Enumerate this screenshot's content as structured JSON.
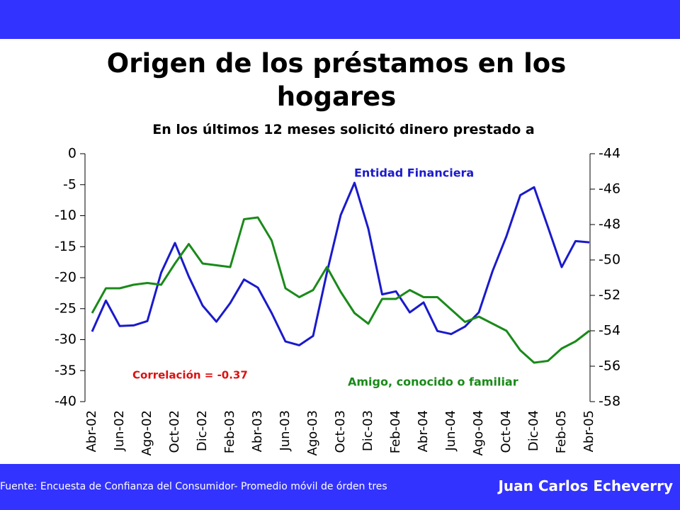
{
  "chart_data": {
    "type": "line",
    "title": "Origen de los préstamos en los hogares",
    "subtitle": "En los últimos 12 meses solicitó dinero prestado a",
    "categories": [
      "Abr-02",
      null,
      "Jun-02",
      null,
      "Ago-02",
      null,
      "Oct-02",
      null,
      "Dic-02",
      null,
      "Feb-03",
      null,
      "Abr-03",
      null,
      "Jun-03",
      null,
      "Ago-03",
      null,
      "Oct-03",
      null,
      "Dic-03",
      null,
      "Feb-04",
      null,
      "Abr-04",
      null,
      "Jun-04",
      null,
      "Ago-04",
      null,
      "Oct-04",
      null,
      "Dic-04",
      null,
      "Feb-05",
      null,
      "Abr-05"
    ],
    "series": [
      {
        "name": "Entidad Financiera",
        "color": "#1a1acc",
        "values": [
          -28.7,
          -23.7,
          -27.8,
          -27.7,
          -27.0,
          -19.2,
          -14.4,
          -19.8,
          -24.5,
          -27.1,
          -24.1,
          -20.3,
          -21.6,
          -25.7,
          -30.3,
          -30.9,
          -29.4,
          -19.2,
          -9.9,
          -4.7,
          -12.1,
          -22.7,
          -22.2,
          -25.6,
          -24.0,
          -28.6,
          -29.1,
          -27.9,
          -25.6,
          -18.9,
          -13.3,
          -6.7,
          -5.4,
          -11.8,
          -18.3,
          -14.1,
          -14.3
        ]
      },
      {
        "name": "Amigo, conocido o familiar",
        "color": "#1a8a1a",
        "axis": "y2",
        "values": [
          -53.0,
          -51.6,
          -51.6,
          -51.4,
          -51.3,
          -51.4,
          -50.2,
          -49.1,
          -50.2,
          -50.3,
          -50.4,
          -47.7,
          -47.6,
          -48.9,
          -51.6,
          -52.1,
          -51.7,
          -50.4,
          -51.8,
          -53.0,
          -53.6,
          -52.2,
          -52.2,
          -51.7,
          -52.1,
          -52.1,
          -52.8,
          -53.5,
          -53.2,
          -53.6,
          -54.0,
          -55.1,
          -55.8,
          -55.7,
          -55.0,
          -54.6,
          -54.0
        ]
      }
    ],
    "ylim": [
      -40,
      0
    ],
    "yticks": [
      0,
      -5,
      -10,
      -15,
      -20,
      -25,
      -30,
      -35,
      -40
    ],
    "y2lim": [
      -58,
      -44
    ],
    "y2ticks": [
      -44,
      -46,
      -48,
      -50,
      -52,
      -54,
      -56,
      -58
    ],
    "annotations": [
      "Correlación = -0.37"
    ],
    "source": "Fuente: Encuesta de Confianza del Consumidor- Promedio móvil de órden tres",
    "author": "Juan Carlos Echeverry"
  }
}
